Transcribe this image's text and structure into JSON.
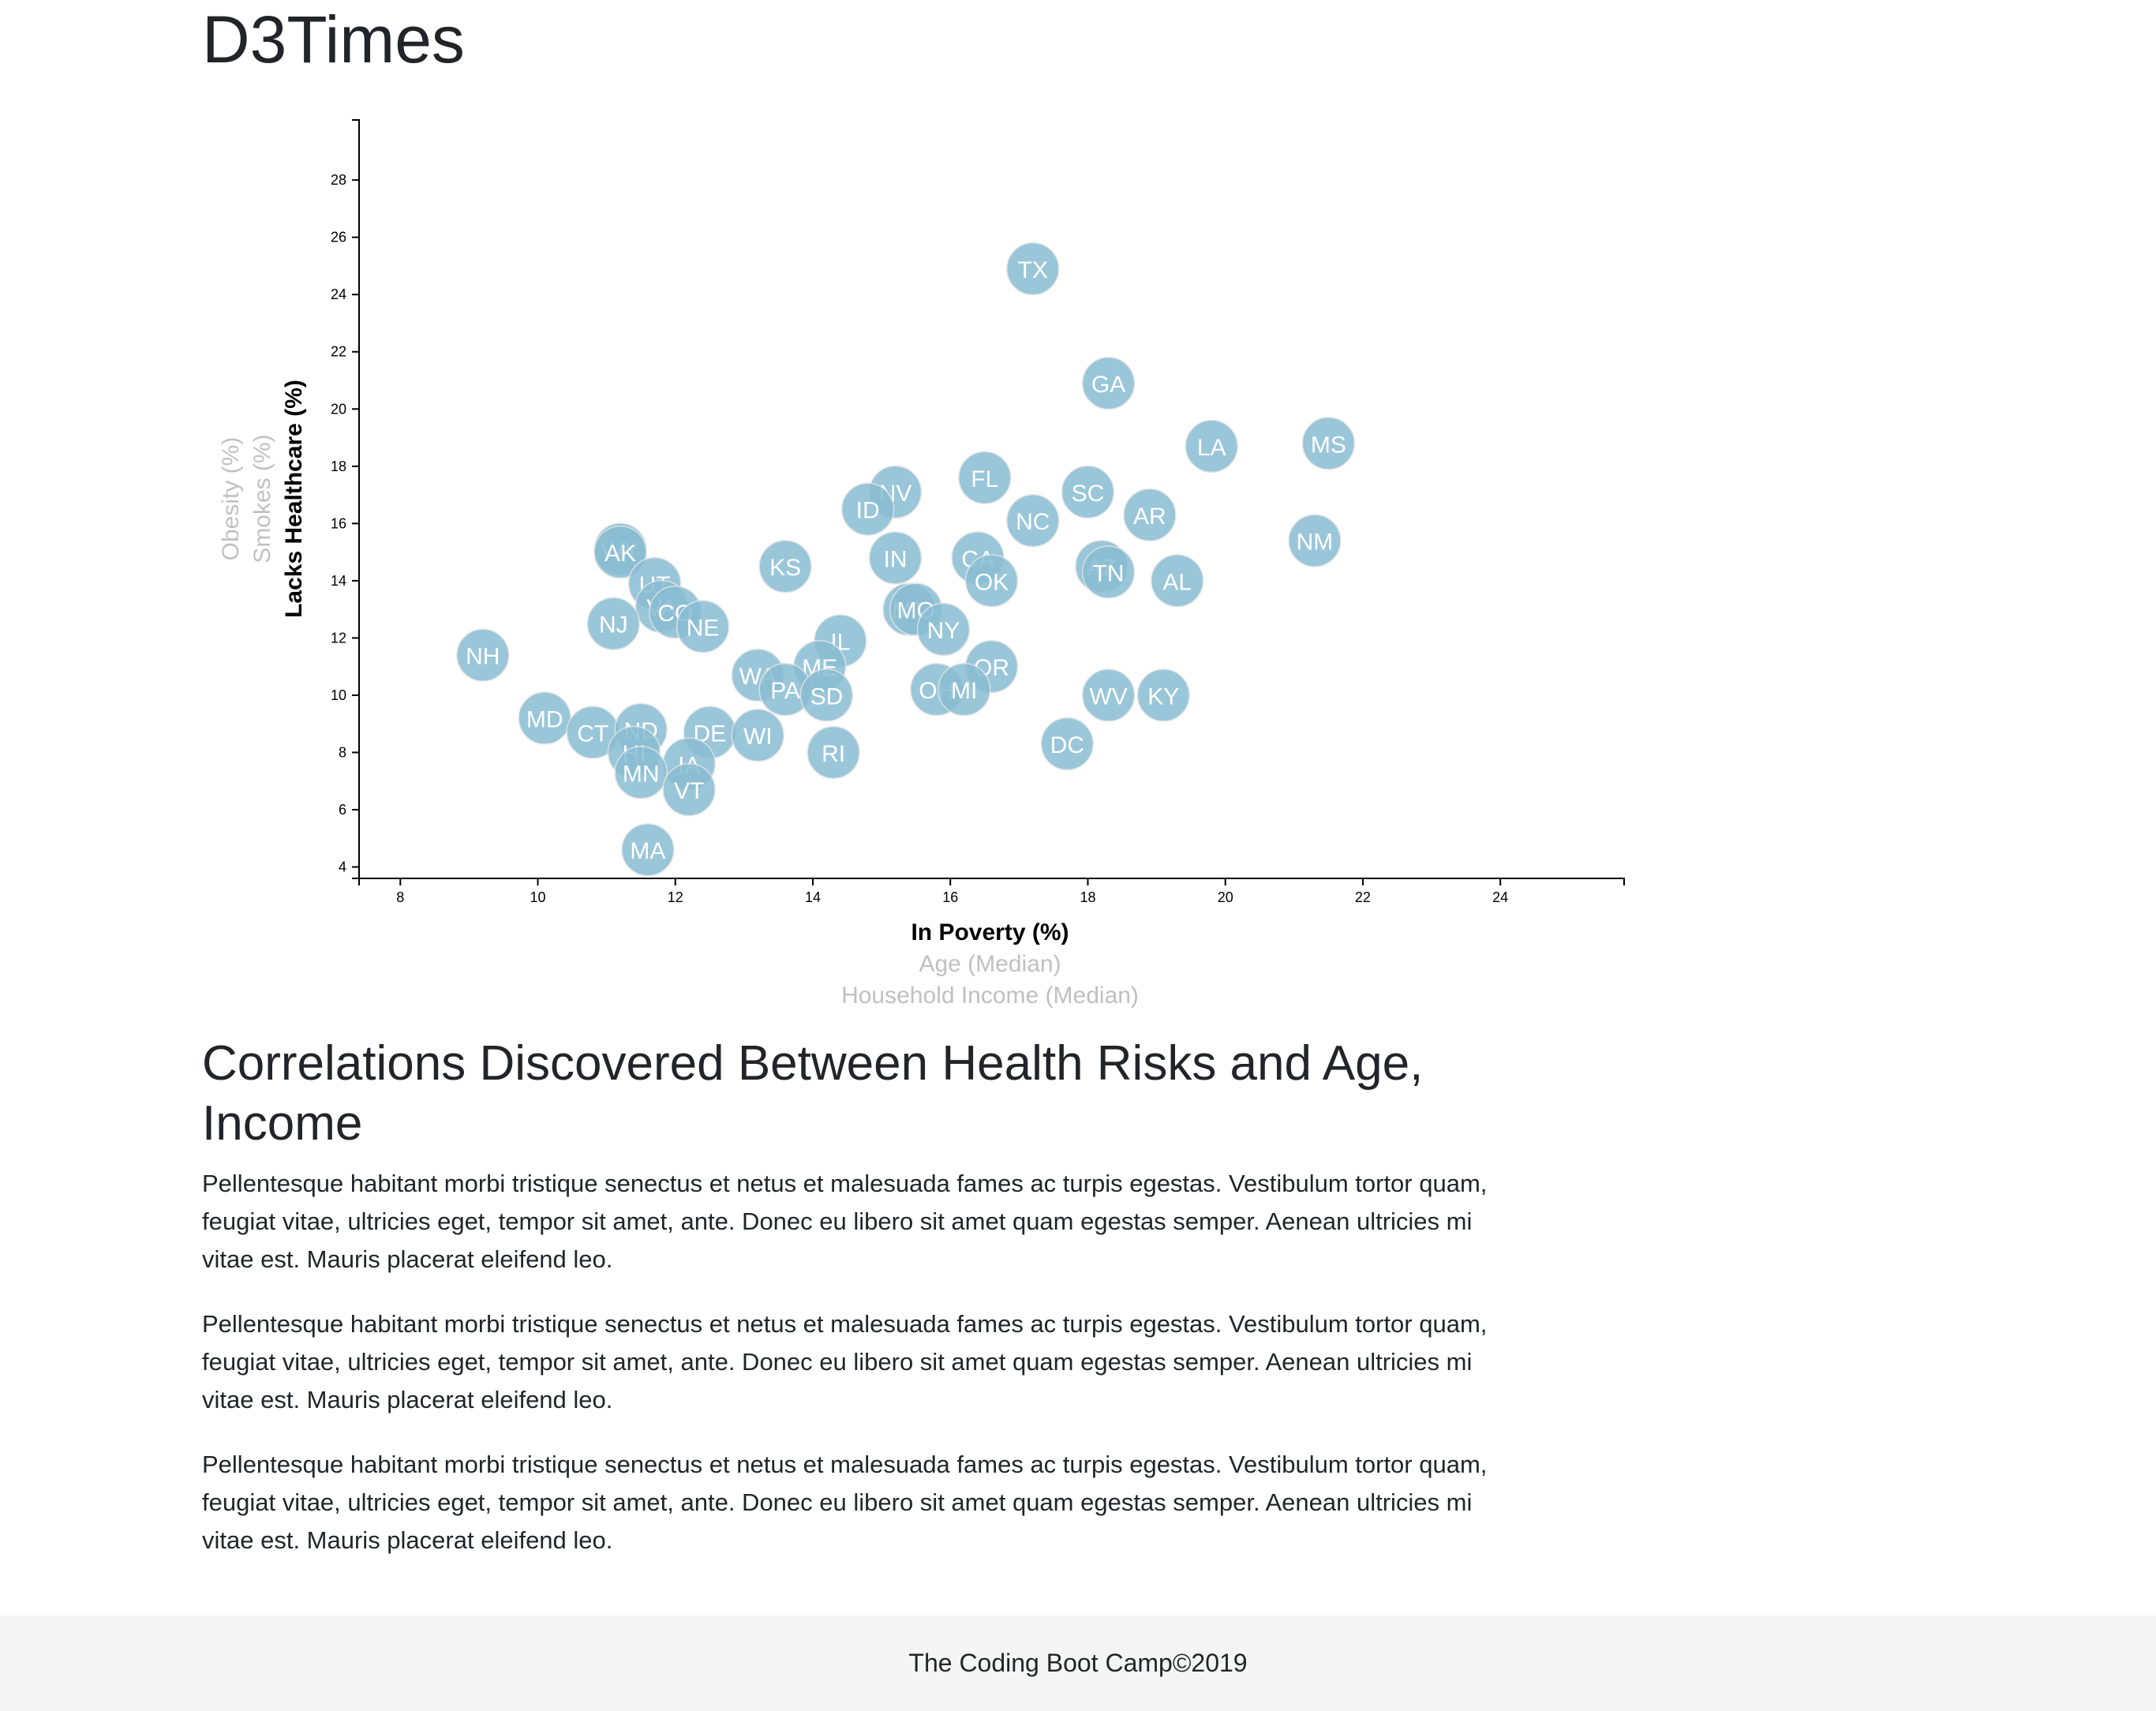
{
  "header": {
    "title": "D3Times"
  },
  "chart_data": {
    "type": "scatter",
    "x_axis": {
      "labels": [
        {
          "text": "In Poverty (%)",
          "active": true
        },
        {
          "text": "Age (Median)",
          "active": false
        },
        {
          "text": "Household Income (Median)",
          "active": false
        }
      ],
      "xlim": [
        7.4,
        25.8
      ],
      "ticks": [
        8,
        10,
        12,
        14,
        16,
        18,
        20,
        22,
        24
      ]
    },
    "y_axis": {
      "labels": [
        {
          "text": "Lacks Healthcare (%)",
          "active": true
        },
        {
          "text": "Smokes (%)",
          "active": false
        },
        {
          "text": "Obesity (%)",
          "active": false
        }
      ],
      "ylim": [
        3.6,
        30.1
      ],
      "ticks": [
        4,
        6,
        8,
        10,
        12,
        14,
        16,
        18,
        20,
        22,
        24,
        26,
        28
      ]
    },
    "points": [
      {
        "abbr": "TX",
        "x": 17.2,
        "y": 24.9
      },
      {
        "abbr": "GA",
        "x": 18.3,
        "y": 20.9
      },
      {
        "abbr": "LA",
        "x": 19.8,
        "y": 18.7
      },
      {
        "abbr": "MS",
        "x": 21.5,
        "y": 18.8
      },
      {
        "abbr": "FL",
        "x": 16.5,
        "y": 17.6
      },
      {
        "abbr": "NV",
        "x": 15.2,
        "y": 17.1
      },
      {
        "abbr": "SC",
        "x": 18.0,
        "y": 17.1
      },
      {
        "abbr": "ID",
        "x": 14.8,
        "y": 16.5
      },
      {
        "abbr": "NC",
        "x": 17.2,
        "y": 16.1
      },
      {
        "abbr": "AR",
        "x": 18.9,
        "y": 16.3
      },
      {
        "abbr": "NM",
        "x": 21.3,
        "y": 15.4
      },
      {
        "abbr": "WY",
        "x": 11.2,
        "y": 15.1
      },
      {
        "abbr": "AK",
        "x": 11.2,
        "y": 15.0
      },
      {
        "abbr": "KS",
        "x": 13.6,
        "y": 14.5
      },
      {
        "abbr": "IN",
        "x": 15.2,
        "y": 14.8
      },
      {
        "abbr": "CA",
        "x": 16.4,
        "y": 14.8
      },
      {
        "abbr": "AZ",
        "x": 18.2,
        "y": 14.5
      },
      {
        "abbr": "TN",
        "x": 18.3,
        "y": 14.3
      },
      {
        "abbr": "UT",
        "x": 11.7,
        "y": 13.9
      },
      {
        "abbr": "OK",
        "x": 16.6,
        "y": 14.0
      },
      {
        "abbr": "AL",
        "x": 19.3,
        "y": 14.0
      },
      {
        "abbr": "VA",
        "x": 11.8,
        "y": 13.1
      },
      {
        "abbr": "CO",
        "x": 12.0,
        "y": 12.9
      },
      {
        "abbr": "MT",
        "x": 15.4,
        "y": 13.0
      },
      {
        "abbr": "MO",
        "x": 15.5,
        "y": 13.0
      },
      {
        "abbr": "NJ",
        "x": 11.1,
        "y": 12.5
      },
      {
        "abbr": "NE",
        "x": 12.4,
        "y": 12.4
      },
      {
        "abbr": "NY",
        "x": 15.9,
        "y": 12.3
      },
      {
        "abbr": "NH",
        "x": 9.2,
        "y": 11.4
      },
      {
        "abbr": "IL",
        "x": 14.4,
        "y": 11.9
      },
      {
        "abbr": "ME",
        "x": 14.1,
        "y": 11.0
      },
      {
        "abbr": "OR",
        "x": 16.6,
        "y": 11.0
      },
      {
        "abbr": "WA",
        "x": 13.2,
        "y": 10.7
      },
      {
        "abbr": "PA",
        "x": 13.6,
        "y": 10.2
      },
      {
        "abbr": "SD",
        "x": 14.2,
        "y": 10.0
      },
      {
        "abbr": "OH",
        "x": 15.8,
        "y": 10.2
      },
      {
        "abbr": "MI",
        "x": 16.2,
        "y": 10.2
      },
      {
        "abbr": "WV",
        "x": 18.3,
        "y": 10.0
      },
      {
        "abbr": "KY",
        "x": 19.1,
        "y": 10.0
      },
      {
        "abbr": "MD",
        "x": 10.1,
        "y": 9.2
      },
      {
        "abbr": "CT",
        "x": 10.8,
        "y": 8.7
      },
      {
        "abbr": "ND",
        "x": 11.5,
        "y": 8.8
      },
      {
        "abbr": "DE",
        "x": 12.5,
        "y": 8.7
      },
      {
        "abbr": "WI",
        "x": 13.2,
        "y": 8.6
      },
      {
        "abbr": "DC",
        "x": 17.7,
        "y": 8.3
      },
      {
        "abbr": "HI",
        "x": 11.4,
        "y": 8.0
      },
      {
        "abbr": "RI",
        "x": 14.3,
        "y": 8.0
      },
      {
        "abbr": "IA",
        "x": 12.2,
        "y": 7.6
      },
      {
        "abbr": "MN",
        "x": 11.5,
        "y": 7.3
      },
      {
        "abbr": "VT",
        "x": 12.2,
        "y": 6.7
      },
      {
        "abbr": "MA",
        "x": 11.6,
        "y": 4.6
      }
    ]
  },
  "article": {
    "heading": "Correlations Discovered Between Health Risks and Age, Income",
    "paragraphs": [
      "Pellentesque habitant morbi tristique senectus et netus et malesuada fames ac turpis egestas. Vestibulum tortor quam, feugiat vitae, ultricies eget, tempor sit amet, ante. Donec eu libero sit amet quam egestas semper. Aenean ultricies mi vitae est. Mauris placerat eleifend leo.",
      "Pellentesque habitant morbi tristique senectus et netus et malesuada fames ac turpis egestas. Vestibulum tortor quam, feugiat vitae, ultricies eget, tempor sit amet, ante. Donec eu libero sit amet quam egestas semper. Aenean ultricies mi vitae est. Mauris placerat eleifend leo.",
      "Pellentesque habitant morbi tristique senectus et netus et malesuada fames ac turpis egestas. Vestibulum tortor quam, feugiat vitae, ultricies eget, tempor sit amet, ante. Donec eu libero sit amet quam egestas semper. Aenean ultricies mi vitae est. Mauris placerat eleifend leo."
    ]
  },
  "footer": {
    "text": "The Coding Boot Camp©2019"
  }
}
